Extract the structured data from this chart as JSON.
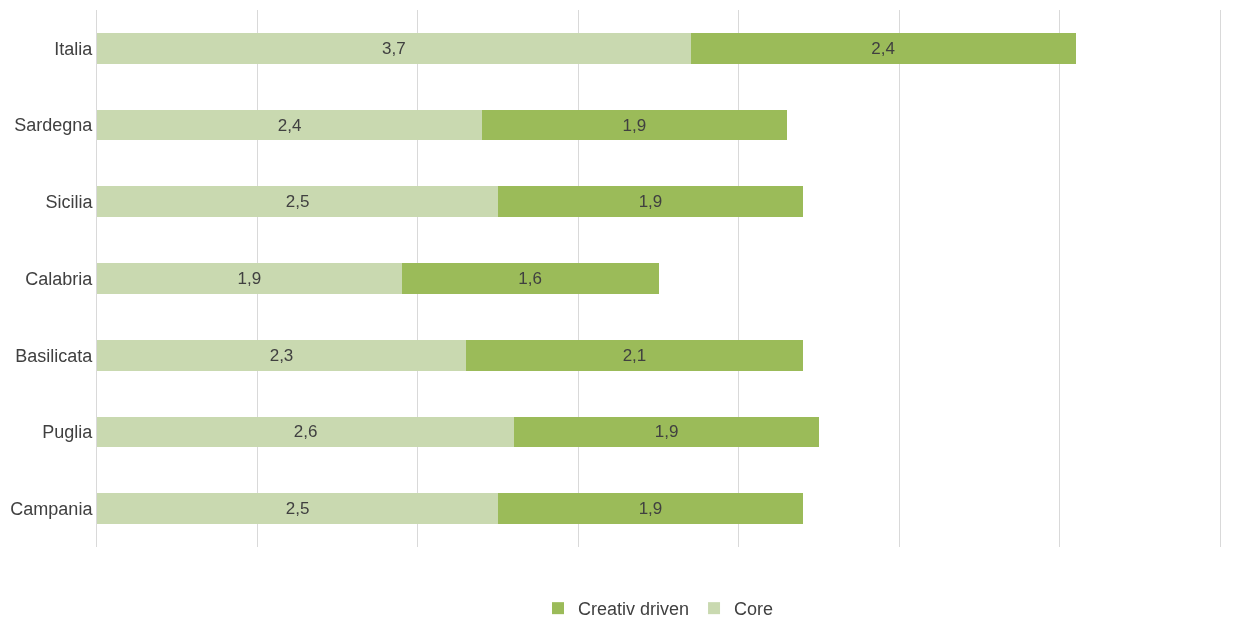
{
  "chart_data": {
    "type": "bar",
    "orientation": "horizontal",
    "stacked": true,
    "categories": [
      "Italia",
      "Sardegna",
      "Sicilia",
      "Calabria",
      "Basilicata",
      "Puglia",
      "Campania"
    ],
    "series": [
      {
        "name": "Core",
        "color": "#c9d9b0",
        "values": [
          3.7,
          2.4,
          2.5,
          1.9,
          2.3,
          2.6,
          2.5
        ],
        "value_labels": [
          "3,7",
          "2,4",
          "2,5",
          "1,9",
          "2,3",
          "2,6",
          "2,5"
        ]
      },
      {
        "name": "Creativ driven",
        "color": "#9bbb59",
        "values": [
          2.4,
          1.9,
          1.9,
          1.6,
          2.1,
          1.9,
          1.9
        ],
        "value_labels": [
          "2,4",
          "1,9",
          "1,9",
          "1,6",
          "2,1",
          "1,9",
          "1,9"
        ]
      }
    ],
    "xlim": [
      0,
      7
    ],
    "xticks": [
      {
        "value": 0,
        "label": null
      },
      {
        "value": 1,
        "label": null
      },
      {
        "value": 2,
        "label": null
      },
      {
        "value": 3,
        "label": null
      },
      {
        "value": 4,
        "label": null
      },
      {
        "value": 5,
        "label": null
      },
      {
        "value": 6,
        "label": null
      },
      {
        "value": 7,
        "label": null
      }
    ],
    "tick_labels": "y",
    "grid": "x",
    "legend": "bottom"
  }
}
